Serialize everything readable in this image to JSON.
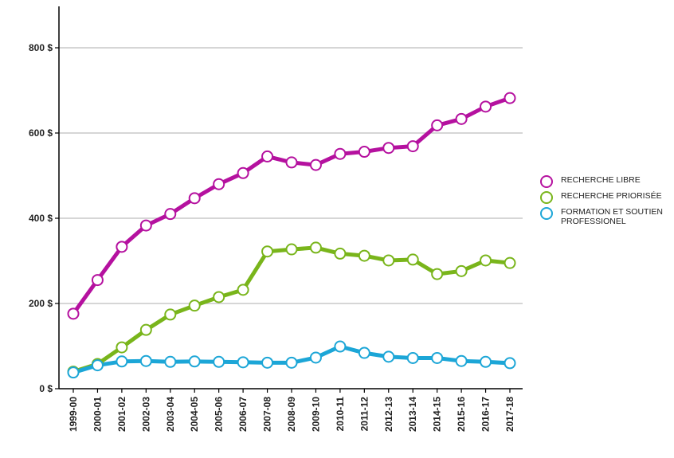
{
  "chart_data": {
    "type": "line",
    "title": "",
    "xlabel": "",
    "ylabel": "",
    "ylim": [
      0,
      900
    ],
    "y_ticks": [
      0,
      200,
      400,
      600,
      800
    ],
    "y_tick_labels": [
      "0 $",
      "200 $",
      "400 $",
      "600 $",
      "800 $"
    ],
    "grid": true,
    "legend_position": "right",
    "categories": [
      "1999-00",
      "2000-01",
      "2001-02",
      "2002-03",
      "2003-04",
      "2004-05",
      "2005-06",
      "2006-07",
      "2007-08",
      "2008-09",
      "2009-10",
      "2010-11",
      "2011-12",
      "2012-13",
      "2013-14",
      "2014-15",
      "2015-16",
      "2016-17",
      "2017-18"
    ],
    "series": [
      {
        "name": "RECHERCHE LIBRE",
        "color": "#b5119f",
        "values": [
          176,
          255,
          333,
          383,
          410,
          447,
          480,
          506,
          545,
          531,
          525,
          551,
          556,
          565,
          569,
          618,
          633,
          662,
          682
        ]
      },
      {
        "name": "RECHERCHE PRIORISÉE",
        "color": "#79b51b",
        "values": [
          40,
          58,
          97,
          138,
          174,
          195,
          215,
          232,
          322,
          327,
          331,
          317,
          312,
          301,
          303,
          269,
          276,
          301,
          295
        ]
      },
      {
        "name": "FORMATION ET SOUTIEN\n PROFESSIONEL",
        "color": "#1ca6d7",
        "values": [
          38,
          55,
          64,
          65,
          63,
          64,
          63,
          62,
          61,
          61,
          73,
          99,
          84,
          75,
          72,
          72,
          65,
          63,
          60
        ]
      }
    ]
  }
}
